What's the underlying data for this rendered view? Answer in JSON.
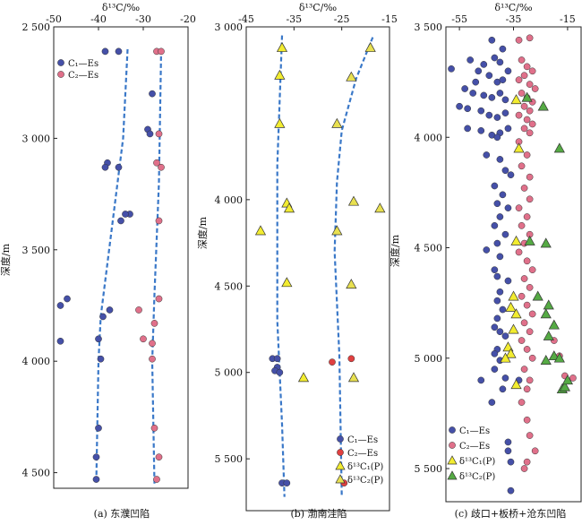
{
  "chart_data": [
    {
      "type": "scatter",
      "caption": "(a) 东濮凹陷",
      "xlabel": "δ¹³C/‰",
      "ylabel": "深度/m",
      "xlim": [
        -50,
        -20
      ],
      "ylim": [
        2500,
        4570
      ],
      "xticks": [
        "-50",
        "-40",
        "-30",
        "-20"
      ],
      "xtick_values": [
        -50,
        -40,
        -30,
        -20
      ],
      "yticks": [
        "2 500",
        "3 000",
        "3 500",
        "4 000",
        "4 500"
      ],
      "ytick_values": [
        2500,
        3000,
        3500,
        4000,
        4500
      ],
      "legend_position": "top-left",
      "series": [
        {
          "name": "C₁—Es",
          "marker": "circle",
          "color": "#4550a8",
          "points": [
            [
              -38.5,
              2610
            ],
            [
              -35.5,
              2610
            ],
            [
              -28,
              2800
            ],
            [
              -29,
              2960
            ],
            [
              -28.5,
              2980
            ],
            [
              -38,
              3110
            ],
            [
              -38.5,
              3130
            ],
            [
              -35.5,
              3130
            ],
            [
              -33,
              3340
            ],
            [
              -34,
              3340
            ],
            [
              -35,
              3370
            ],
            [
              -47,
              3720
            ],
            [
              -48.5,
              3750
            ],
            [
              -37.5,
              3770
            ],
            [
              -39,
              3800
            ],
            [
              -48.5,
              3910
            ],
            [
              -40,
              3900
            ],
            [
              -39.5,
              3990
            ],
            [
              -40,
              4300
            ],
            [
              -40.5,
              4430
            ],
            [
              -40.5,
              4530
            ]
          ]
        },
        {
          "name": "C₂—Es",
          "marker": "circle",
          "color": "#e0708a",
          "points": [
            [
              -27,
              2610
            ],
            [
              -26,
              2610
            ],
            [
              -26.5,
              2980
            ],
            [
              -27,
              3110
            ],
            [
              -26,
              3130
            ],
            [
              -26.5,
              3370
            ],
            [
              -26.5,
              3720
            ],
            [
              -31,
              3770
            ],
            [
              -27.5,
              3830
            ],
            [
              -30,
              3900
            ],
            [
              -28,
              3920
            ],
            [
              -28,
              3990
            ],
            [
              -27.5,
              4300
            ],
            [
              -26.5,
              4430
            ],
            [
              -27,
              4530
            ]
          ]
        }
      ],
      "trend_lines": [
        {
          "color": "#3a78c8",
          "points": [
            [
              -33.5,
              2600
            ],
            [
              -34.5,
              3000
            ],
            [
              -37,
              3400
            ],
            [
              -39.5,
              3800
            ],
            [
              -40,
              4000
            ],
            [
              -40.5,
              4550
            ]
          ]
        },
        {
          "color": "#3a78c8",
          "points": [
            [
              -26,
              2600
            ],
            [
              -26.5,
              3200
            ],
            [
              -27.5,
              3700
            ],
            [
              -28,
              4000
            ],
            [
              -27.5,
              4550
            ]
          ]
        }
      ]
    },
    {
      "type": "scatter",
      "caption": "(b) 渤南洼陷",
      "xlabel": "δ¹³C/‰",
      "ylabel": "深度/m",
      "xlim": [
        -45,
        -15
      ],
      "ylim": [
        3000,
        5800
      ],
      "xticks": [
        "-45",
        "-35",
        "-25",
        "-15"
      ],
      "xtick_values": [
        -45,
        -35,
        -25,
        -15
      ],
      "yticks": [
        "3 000",
        "4 000",
        "4 500",
        "5 000",
        "5 500"
      ],
      "ytick_values": [
        3000,
        4000,
        4500,
        5000,
        5500
      ],
      "legend_position": "bottom-right",
      "series": [
        {
          "name": "C₁—Es",
          "marker": "circle",
          "color": "#4550a8",
          "points": [
            [
              -39.5,
              4920
            ],
            [
              -38.5,
              4920
            ],
            [
              -38.5,
              4970
            ],
            [
              -39,
              4990
            ],
            [
              -38,
              5000
            ],
            [
              -37.5,
              5640
            ],
            [
              -36.5,
              5640
            ]
          ]
        },
        {
          "name": "C₂—Es",
          "marker": "circle",
          "color": "#e04040",
          "points": [
            [
              -27,
              4940
            ],
            [
              -23,
              4920
            ],
            [
              -24.5,
              5640
            ]
          ]
        },
        {
          "name": "δ¹³C₁(P)",
          "marker": "triangle",
          "color": "#f2ec30",
          "points": [
            [
              -37.5,
              3120
            ],
            [
              -38,
              3280
            ],
            [
              -38,
              3560
            ],
            [
              -36.5,
              4020
            ],
            [
              -36,
              4050
            ],
            [
              -42,
              4180
            ],
            [
              -36.5,
              4480
            ],
            [
              -33,
              5030
            ]
          ]
        },
        {
          "name": "δ¹³C₂(P)",
          "marker": "triangle",
          "color": "#e8e050",
          "points": [
            [
              -19,
              3120
            ],
            [
              -23,
              3290
            ],
            [
              -26,
              3560
            ],
            [
              -22.5,
              4010
            ],
            [
              -26,
              4180
            ],
            [
              -23,
              4490
            ],
            [
              -22.5,
              5030
            ],
            [
              -17,
              4050
            ]
          ]
        }
      ],
      "trend_lines": [
        {
          "color": "#3a78c8",
          "points": [
            [
              -37.5,
              3050
            ],
            [
              -38.5,
              3800
            ],
            [
              -38.5,
              4700
            ],
            [
              -37.5,
              5300
            ],
            [
              -37,
              5720
            ]
          ]
        },
        {
          "color": "#3a78c8",
          "points": [
            [
              -18.5,
              3060
            ],
            [
              -22,
              3300
            ],
            [
              -25,
              3600
            ],
            [
              -26,
              3900
            ],
            [
              -26.5,
              4300
            ],
            [
              -25.5,
              4900
            ],
            [
              -25,
              5720
            ]
          ]
        }
      ]
    },
    {
      "type": "scatter",
      "caption": "(c) 歧口+板桥+沧东凹陷",
      "xlabel": "δ¹³C/‰",
      "ylabel": "深度/m",
      "xlim": [
        -60,
        -10
      ],
      "ylim": [
        3500,
        5650
      ],
      "xticks": [
        "-55",
        "-35",
        "-15"
      ],
      "xtick_values": [
        -55,
        -35,
        -15
      ],
      "yticks": [
        "3 500",
        "4 000",
        "4 500",
        "5 000",
        "5 500"
      ],
      "ytick_values": [
        3500,
        4000,
        4500,
        5000,
        5500
      ],
      "legend_position": "bottom-left",
      "series": [
        {
          "name": "C₁—Es",
          "marker": "circle",
          "color": "#4550a8",
          "points": [
            [
              -58,
              3690
            ],
            [
              -51,
              3650
            ],
            [
              -46,
              3670
            ],
            [
              -42,
              3640
            ],
            [
              -40,
              3660
            ],
            [
              -44,
              3720
            ],
            [
              -41,
              3750
            ],
            [
              -48,
              3700
            ],
            [
              -53,
              3780
            ],
            [
              -50,
              3800
            ],
            [
              -46,
              3810
            ],
            [
              -43,
              3820
            ],
            [
              -40,
              3800
            ],
            [
              -38,
              3830
            ],
            [
              -55,
              3860
            ],
            [
              -52,
              3870
            ],
            [
              -47,
              3880
            ],
            [
              -44,
              3900
            ],
            [
              -41,
              3910
            ],
            [
              -38,
              3890
            ],
            [
              -52,
              3960
            ],
            [
              -47,
              3970
            ],
            [
              -43,
              3990
            ],
            [
              -40,
              3980
            ],
            [
              -37,
              3960
            ],
            [
              -49,
              3750
            ],
            [
              -39,
              3740
            ],
            [
              -37,
              3700
            ],
            [
              -43,
              3560
            ],
            [
              -39,
              3600
            ],
            [
              -41,
              4000
            ],
            [
              -45,
              4080
            ],
            [
              -40,
              4100
            ],
            [
              -38,
              4150
            ],
            [
              -36,
              4170
            ],
            [
              -42,
              4220
            ],
            [
              -39,
              4260
            ],
            [
              -41,
              4300
            ],
            [
              -37,
              4320
            ],
            [
              -40,
              4360
            ],
            [
              -42,
              4400
            ],
            [
              -38,
              4440
            ],
            [
              -41,
              4480
            ],
            [
              -45,
              4510
            ],
            [
              -40,
              4540
            ],
            [
              -42,
              4600
            ],
            [
              -41,
              4630
            ],
            [
              -37,
              4650
            ],
            [
              -40,
              4700
            ],
            [
              -41,
              4740
            ],
            [
              -39,
              4780
            ],
            [
              -41,
              4820
            ],
            [
              -42,
              4860
            ],
            [
              -40,
              4880
            ],
            [
              -38,
              4900
            ],
            [
              -41,
              4960
            ],
            [
              -42,
              4980
            ],
            [
              -40,
              5010
            ],
            [
              -42,
              5050
            ],
            [
              -38,
              5090
            ],
            [
              -33,
              5100
            ],
            [
              -47,
              5100
            ],
            [
              -39,
              5140
            ],
            [
              -43,
              5200
            ],
            [
              -37,
              5380
            ],
            [
              -37,
              5420
            ],
            [
              -36,
              5470
            ],
            [
              -36,
              5600
            ]
          ]
        },
        {
          "name": "C₂—Es",
          "marker": "circle",
          "color": "#e0708a",
          "points": [
            [
              -33,
              3560
            ],
            [
              -29,
              3550
            ],
            [
              -32,
              3650
            ],
            [
              -30,
              3680
            ],
            [
              -28,
              3700
            ],
            [
              -31,
              3720
            ],
            [
              -33,
              3740
            ],
            [
              -29,
              3760
            ],
            [
              -27,
              3780
            ],
            [
              -32,
              3800
            ],
            [
              -30,
              3820
            ],
            [
              -28,
              3840
            ],
            [
              -31,
              3860
            ],
            [
              -29,
              3880
            ],
            [
              -33,
              3900
            ],
            [
              -30,
              3920
            ],
            [
              -28,
              3940
            ],
            [
              -31,
              3960
            ],
            [
              -29,
              3980
            ],
            [
              -33,
              4020
            ],
            [
              -30,
              4080
            ],
            [
              -32,
              4130
            ],
            [
              -29,
              4180
            ],
            [
              -31,
              4230
            ],
            [
              -29,
              4280
            ],
            [
              -33,
              4320
            ],
            [
              -30,
              4360
            ],
            [
              -32,
              4400
            ],
            [
              -29,
              4440
            ],
            [
              -31,
              4480
            ],
            [
              -33,
              4520
            ],
            [
              -30,
              4560
            ],
            [
              -28,
              4600
            ],
            [
              -31,
              4640
            ],
            [
              -29,
              4680
            ],
            [
              -32,
              4720
            ],
            [
              -30,
              4760
            ],
            [
              -28,
              4800
            ],
            [
              -31,
              4840
            ],
            [
              -29,
              4880
            ],
            [
              -32,
              4920
            ],
            [
              -30,
              4960
            ],
            [
              -20,
              4920
            ],
            [
              -18,
              4990
            ],
            [
              -28,
              5000
            ],
            [
              -31,
              5050
            ],
            [
              -29,
              5100
            ],
            [
              -16,
              5080
            ],
            [
              -13,
              5090
            ],
            [
              -30,
              5140
            ],
            [
              -32,
              5200
            ],
            [
              -30,
              5280
            ],
            [
              -29,
              5350
            ],
            [
              -27,
              5420
            ],
            [
              -30,
              5470
            ],
            [
              -31,
              5500
            ]
          ]
        },
        {
          "name": "δ¹³C₁(P)",
          "marker": "triangle",
          "color": "#f2ec30",
          "points": [
            [
              -34,
              3830
            ],
            [
              -33,
              4050
            ],
            [
              -34,
              4470
            ],
            [
              -35,
              4720
            ],
            [
              -36,
              4770
            ],
            [
              -34,
              4800
            ],
            [
              -35,
              4870
            ],
            [
              -37,
              4950
            ],
            [
              -36,
              4980
            ],
            [
              -38,
              5000
            ],
            [
              -34,
              5120
            ]
          ]
        },
        {
          "name": "δ¹³C₂(P)",
          "marker": "triangle",
          "color": "#55aa44",
          "points": [
            [
              -30,
              3820
            ],
            [
              -24,
              3860
            ],
            [
              -18,
              4050
            ],
            [
              -29,
              4470
            ],
            [
              -23,
              4480
            ],
            [
              -26,
              4720
            ],
            [
              -22,
              4760
            ],
            [
              -23,
              4800
            ],
            [
              -20,
              4850
            ],
            [
              -22,
              4900
            ],
            [
              -20,
              4990
            ],
            [
              -18,
              5000
            ],
            [
              -23,
              5010
            ],
            [
              -17,
              5140
            ],
            [
              -16,
              5130
            ],
            [
              -15,
              5100
            ]
          ]
        }
      ]
    }
  ]
}
